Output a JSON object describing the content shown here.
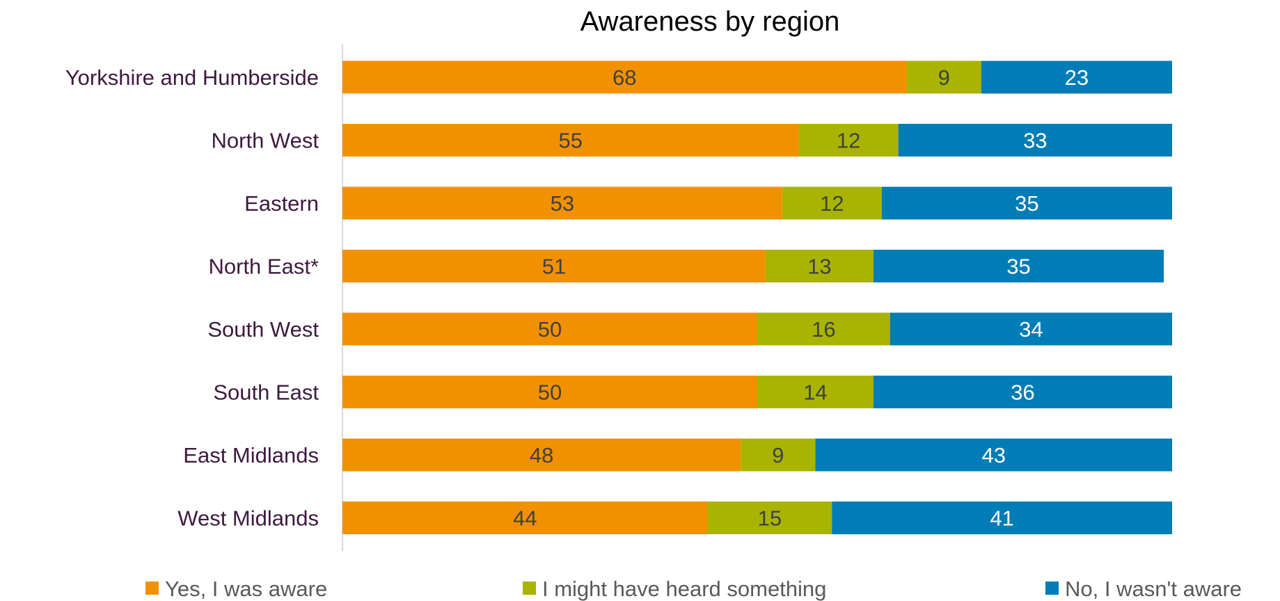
{
  "chart_data": {
    "type": "bar",
    "orientation": "horizontal",
    "stacked": true,
    "title": "Awareness by region",
    "categories": [
      "Yorkshire and Humberside",
      "North West",
      "Eastern",
      "North East*",
      "South West",
      "South East",
      "East Midlands",
      "West Midlands"
    ],
    "series": [
      {
        "name": "Yes, I was aware",
        "color": "#f29100",
        "label_color": "#404040",
        "values": [
          68,
          55,
          53,
          51,
          50,
          50,
          48,
          44
        ]
      },
      {
        "name": "I might have heard something",
        "color": "#a8b400",
        "label_color": "#404040",
        "values": [
          9,
          12,
          12,
          13,
          16,
          14,
          9,
          15
        ]
      },
      {
        "name": "No, I wasn't aware",
        "color": "#007cb6",
        "label_color": "#ffffff",
        "values": [
          23,
          33,
          35,
          35,
          34,
          36,
          43,
          41
        ]
      }
    ],
    "xlim": [
      0,
      100
    ],
    "grid": false,
    "legend_position": "bottom"
  }
}
